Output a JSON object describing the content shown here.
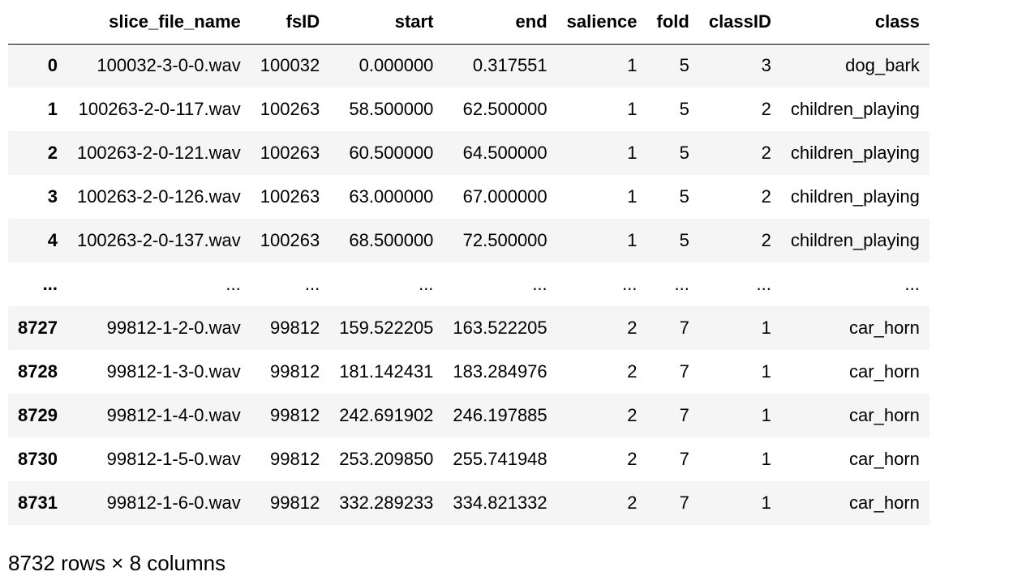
{
  "table": {
    "index_header": "",
    "columns": [
      "slice_file_name",
      "fsID",
      "start",
      "end",
      "salience",
      "fold",
      "classID",
      "class"
    ],
    "rows": [
      {
        "index": "0",
        "cells": [
          "100032-3-0-0.wav",
          "100032",
          "0.000000",
          "0.317551",
          "1",
          "5",
          "3",
          "dog_bark"
        ]
      },
      {
        "index": "1",
        "cells": [
          "100263-2-0-117.wav",
          "100263",
          "58.500000",
          "62.500000",
          "1",
          "5",
          "2",
          "children_playing"
        ]
      },
      {
        "index": "2",
        "cells": [
          "100263-2-0-121.wav",
          "100263",
          "60.500000",
          "64.500000",
          "1",
          "5",
          "2",
          "children_playing"
        ]
      },
      {
        "index": "3",
        "cells": [
          "100263-2-0-126.wav",
          "100263",
          "63.000000",
          "67.000000",
          "1",
          "5",
          "2",
          "children_playing"
        ]
      },
      {
        "index": "4",
        "cells": [
          "100263-2-0-137.wav",
          "100263",
          "68.500000",
          "72.500000",
          "1",
          "5",
          "2",
          "children_playing"
        ]
      },
      {
        "index": "...",
        "cells": [
          "...",
          "...",
          "...",
          "...",
          "...",
          "...",
          "...",
          "..."
        ]
      },
      {
        "index": "8727",
        "cells": [
          "99812-1-2-0.wav",
          "99812",
          "159.522205",
          "163.522205",
          "2",
          "7",
          "1",
          "car_horn"
        ]
      },
      {
        "index": "8728",
        "cells": [
          "99812-1-3-0.wav",
          "99812",
          "181.142431",
          "183.284976",
          "2",
          "7",
          "1",
          "car_horn"
        ]
      },
      {
        "index": "8729",
        "cells": [
          "99812-1-4-0.wav",
          "99812",
          "242.691902",
          "246.197885",
          "2",
          "7",
          "1",
          "car_horn"
        ]
      },
      {
        "index": "8730",
        "cells": [
          "99812-1-5-0.wav",
          "99812",
          "253.209850",
          "255.741948",
          "2",
          "7",
          "1",
          "car_horn"
        ]
      },
      {
        "index": "8731",
        "cells": [
          "99812-1-6-0.wav",
          "99812",
          "332.289233",
          "334.821332",
          "2",
          "7",
          "1",
          "car_horn"
        ]
      }
    ]
  },
  "caption": "8732 rows × 8 columns"
}
